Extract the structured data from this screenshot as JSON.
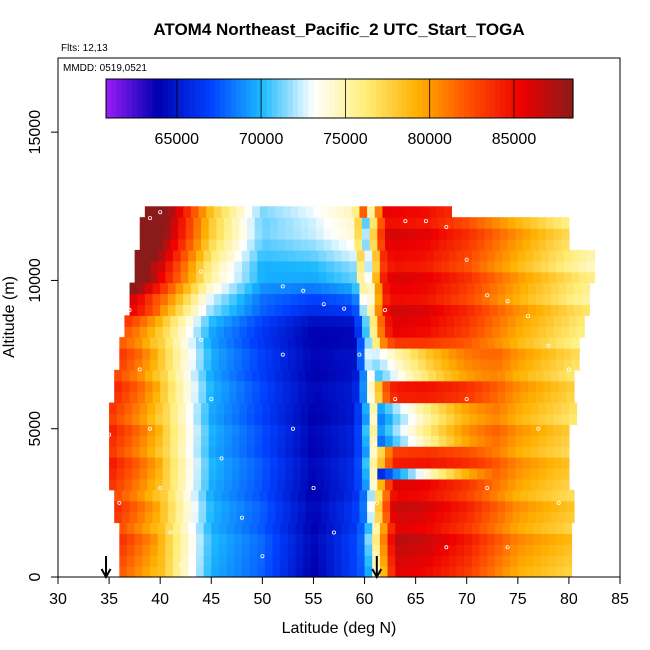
{
  "chart_data": {
    "type": "heatmap",
    "title": "ATOM4 Northeast_Pacific_2 UTC_Start_TOGA",
    "flights_label": "Flts: 12,13",
    "dates_label": "MMDD: 0519,0521",
    "xlabel": "Latitude (deg N)",
    "ylabel": "Altitude (m)",
    "xlim": [
      30,
      85
    ],
    "ylim": [
      0,
      17500
    ],
    "x_ticks": [
      30,
      35,
      40,
      45,
      50,
      55,
      60,
      65,
      70,
      75,
      80,
      85
    ],
    "y_ticks": [
      0,
      5000,
      10000,
      15000
    ],
    "colorbar": {
      "range": [
        60800,
        88500
      ],
      "ticks": [
        65000,
        70000,
        75000,
        80000,
        85000
      ],
      "palette": [
        "#9a1ef5",
        "#0000b0",
        "#0040ff",
        "#1ab9ff",
        "#ffffff",
        "#ffee7a",
        "#ffb000",
        "#ff5000",
        "#ee0000",
        "#8b1a1a"
      ]
    },
    "field": {
      "alt_range": [
        0,
        12500
      ],
      "lat_start": [
        36,
        36,
        35.5,
        35,
        35,
        35,
        35.5,
        36,
        36.5,
        37,
        37.5,
        38,
        38.5
      ],
      "lat_end": [
        80,
        80,
        80,
        80,
        80,
        80.5,
        80.5,
        81,
        81,
        81.5,
        82,
        80,
        68
      ],
      "lat_low": [
        35,
        40,
        45,
        50,
        55,
        60,
        63,
        66,
        70,
        75,
        81
      ],
      "val_low": [
        84000,
        79000,
        70000,
        68000,
        64000,
        68000,
        86500,
        86000,
        84000,
        80000,
        78000
      ],
      "lat_high": [
        35,
        38,
        41,
        45,
        50,
        55,
        59,
        62,
        66,
        70,
        75,
        82
      ],
      "val_high": [
        84000,
        81000,
        76000,
        69500,
        66000,
        64000,
        63000,
        85500,
        85000,
        83000,
        79500,
        75000
      ],
      "upper_blend_alt": [
        8500,
        10000,
        10800,
        12000,
        12500
      ],
      "upper_blend_val": [
        0,
        9000,
        12000,
        15000,
        15500
      ],
      "jet_layers_alt": [
        3500,
        4800,
        6200,
        7500
      ],
      "jet_layers_val": [
        65000,
        68000,
        70000,
        72000
      ]
    },
    "track_points": [
      {
        "lat": 39,
        "alt": 12100
      },
      {
        "lat": 40,
        "alt": 12300
      },
      {
        "lat": 44,
        "alt": 10300
      },
      {
        "lat": 46,
        "alt": 10250
      },
      {
        "lat": 52,
        "alt": 9800
      },
      {
        "lat": 54,
        "alt": 9650
      },
      {
        "lat": 56,
        "alt": 9200
      },
      {
        "lat": 58,
        "alt": 9050
      },
      {
        "lat": 59.5,
        "alt": 7500
      },
      {
        "lat": 60.5,
        "alt": 6000
      },
      {
        "lat": 61,
        "alt": 4500
      },
      {
        "lat": 61.2,
        "alt": 2500
      },
      {
        "lat": 61,
        "alt": 800
      },
      {
        "lat": 64,
        "alt": 12000
      },
      {
        "lat": 66,
        "alt": 12000
      },
      {
        "lat": 68,
        "alt": 11800
      },
      {
        "lat": 70,
        "alt": 10700
      },
      {
        "lat": 72,
        "alt": 9500
      },
      {
        "lat": 74,
        "alt": 9300
      },
      {
        "lat": 76,
        "alt": 8800
      },
      {
        "lat": 78,
        "alt": 7800
      },
      {
        "lat": 80,
        "alt": 7000
      },
      {
        "lat": 37,
        "alt": 9000
      },
      {
        "lat": 38,
        "alt": 7000
      },
      {
        "lat": 39,
        "alt": 5000
      },
      {
        "lat": 40,
        "alt": 3000
      },
      {
        "lat": 41,
        "alt": 1500
      },
      {
        "lat": 42,
        "alt": 400
      },
      {
        "lat": 35,
        "alt": 4800
      },
      {
        "lat": 36,
        "alt": 2500
      },
      {
        "lat": 44,
        "alt": 8000
      },
      {
        "lat": 45,
        "alt": 6000
      },
      {
        "lat": 46,
        "alt": 4000
      },
      {
        "lat": 48,
        "alt": 2000
      },
      {
        "lat": 50,
        "alt": 700
      },
      {
        "lat": 52,
        "alt": 7500
      },
      {
        "lat": 53,
        "alt": 5000
      },
      {
        "lat": 55,
        "alt": 3000
      },
      {
        "lat": 57,
        "alt": 1500
      },
      {
        "lat": 62,
        "alt": 9000
      },
      {
        "lat": 63,
        "alt": 6000
      },
      {
        "lat": 66,
        "alt": 3500
      },
      {
        "lat": 68,
        "alt": 1000
      },
      {
        "lat": 70,
        "alt": 6000
      },
      {
        "lat": 72,
        "alt": 3000
      },
      {
        "lat": 74,
        "alt": 1000
      },
      {
        "lat": 77,
        "alt": 5000
      },
      {
        "lat": 79,
        "alt": 2500
      }
    ],
    "arrows": [
      34.7,
      61.2
    ]
  }
}
